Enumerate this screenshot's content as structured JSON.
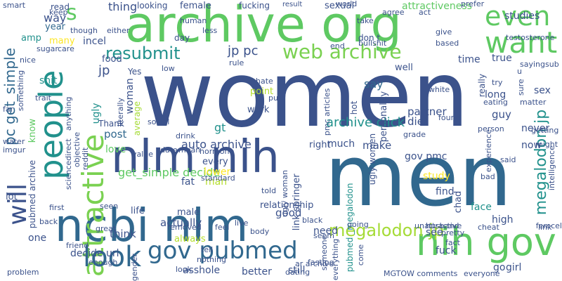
{
  "words": [
    {
      "text": "women",
      "color": "#3b528b"
    },
    {
      "text": "men",
      "color": "#31688e"
    },
    {
      "text": "archive org",
      "color": "#5ec962"
    },
    {
      "text": "nlm nih",
      "color": "#3b528b"
    },
    {
      "text": "ncbi nlm",
      "color": "#31688e"
    },
    {
      "text": "nih gov",
      "color": "#5ec962"
    },
    {
      "text": "people",
      "color": "#21918c"
    },
    {
      "text": "attractive",
      "color": "#7ad151"
    },
    {
      "text": "look",
      "color": "#31688e"
    },
    {
      "text": "will",
      "color": "#3b528b"
    },
    {
      "text": "want",
      "color": "#5ec962"
    },
    {
      "text": "even",
      "color": "#5ec962"
    },
    {
      "text": "gov pubmed",
      "color": "#31688e"
    },
    {
      "text": "web archive",
      "color": "#7ad151"
    },
    {
      "text": "resubmit",
      "color": "#21918c"
    },
    {
      "text": "megalodon jp",
      "color": "#a5db36"
    },
    {
      "text": "megalodon jp",
      "color": "#21918c"
    },
    {
      "text": "jp pc",
      "color": "#3b528b"
    },
    {
      "text": "pc get_simple",
      "color": "#31688e"
    },
    {
      "text": "s",
      "color": "#5ec962"
    },
    {
      "text": "archive click",
      "color": "#21918c"
    },
    {
      "text": "auto archive",
      "color": "#3b528b"
    },
    {
      "text": "get_simple decide",
      "color": "#5ec962"
    },
    {
      "text": "attractiveness",
      "color": "#5ec962"
    },
    {
      "text": "studies",
      "color": "#3b528b"
    },
    {
      "text": "thing",
      "color": "#3b528b"
    },
    {
      "text": "say",
      "color": "#31688e"
    },
    {
      "text": "incel",
      "color": "#3b528b"
    },
    {
      "text": "way",
      "color": "#3b528b"
    },
    {
      "text": "year",
      "color": "#31688e"
    },
    {
      "text": "amp",
      "color": "#21918c"
    },
    {
      "text": "many",
      "color": "#fde725"
    },
    {
      "text": "jp",
      "color": "#3b528b"
    },
    {
      "text": "food",
      "color": "#3b528b"
    },
    {
      "text": "shit",
      "color": "#21918c"
    },
    {
      "text": "ugly",
      "color": "#21918c"
    },
    {
      "text": "woman",
      "color": "#3b528b"
    },
    {
      "text": "Thank",
      "color": "#3b528b"
    },
    {
      "text": "post",
      "color": "#31688e"
    },
    {
      "text": "gt",
      "color": "#21918c"
    },
    {
      "text": "love",
      "color": "#5ec962"
    },
    {
      "text": "average",
      "color": "#a5db36"
    },
    {
      "text": "know",
      "color": "#5ec962"
    },
    {
      "text": "point",
      "color": "#b5de2b"
    },
    {
      "text": "work",
      "color": "#3b528b"
    },
    {
      "text": "link springer",
      "color": "#3b528b"
    },
    {
      "text": "much",
      "color": "#3b528b"
    },
    {
      "text": "make",
      "color": "#3b528b"
    },
    {
      "text": "right",
      "color": "#3b528b"
    },
    {
      "text": "every",
      "color": "#3b528b"
    },
    {
      "text": "lower",
      "color": "#fde725"
    },
    {
      "text": "fat",
      "color": "#3b528b"
    },
    {
      "text": "man",
      "color": "#b5de2b"
    },
    {
      "text": "life",
      "color": "#3b528b"
    },
    {
      "text": "relationship",
      "color": "#3b528b"
    },
    {
      "text": "actually",
      "color": "#3b528b"
    },
    {
      "text": "male",
      "color": "#3b528b"
    },
    {
      "text": "always",
      "color": "#b5de2b"
    },
    {
      "text": "asshole",
      "color": "#3b528b"
    },
    {
      "text": "think",
      "color": "#3b528b"
    },
    {
      "text": "decide url",
      "color": "#3b528b"
    },
    {
      "text": "one",
      "color": "#3b528b"
    },
    {
      "text": "lot",
      "color": "#3b528b"
    },
    {
      "text": "pubmed archive",
      "color": "#3b528b"
    },
    {
      "text": "good",
      "color": "#3b528b"
    },
    {
      "text": "need",
      "color": "#3b528b"
    },
    {
      "text": "better",
      "color": "#3b528b"
    },
    {
      "text": "still",
      "color": "#3b528b"
    },
    {
      "text": "ugly women",
      "color": "#3b528b"
    },
    {
      "text": "pubmed _megalodon",
      "color": "#21918c"
    },
    {
      "text": "study",
      "color": "#fde725"
    },
    {
      "text": "find",
      "color": "#3b528b"
    },
    {
      "text": "face",
      "color": "#21918c"
    },
    {
      "text": "high",
      "color": "#3b528b"
    },
    {
      "text": "see",
      "color": "#3b528b"
    },
    {
      "text": "fuck",
      "color": "#3b528b"
    },
    {
      "text": "go",
      "color": "#3b528b"
    },
    {
      "text": "girl",
      "color": "#3b528b"
    },
    {
      "text": "chad",
      "color": "#3b528b"
    },
    {
      "text": "guy",
      "color": "#3b528b"
    },
    {
      "text": "long",
      "color": "#3b528b"
    },
    {
      "text": "sex",
      "color": "#3b528b"
    },
    {
      "text": "now",
      "color": "#3b528b"
    },
    {
      "text": "never",
      "color": "#3b528b"
    },
    {
      "text": "true",
      "color": "#3b528b"
    },
    {
      "text": "time",
      "color": "#3b528b"
    },
    {
      "text": "partner",
      "color": "#3b528b"
    },
    {
      "text": "diet",
      "color": "#3b528b"
    },
    {
      "text": "gov pmc",
      "color": "#3b528b"
    },
    {
      "text": "personality",
      "color": "#3b528b"
    },
    {
      "text": "really",
      "color": "#3b528b"
    },
    {
      "text": "well",
      "color": "#3b528b"
    },
    {
      "text": "hot",
      "color": "#3b528b"
    },
    {
      "text": "reddit",
      "color": "#3b528b"
    },
    {
      "text": "read",
      "color": "#3b528b"
    },
    {
      "text": "something",
      "color": "#3b528b"
    },
    {
      "text": "keep",
      "color": "#3b528b"
    },
    {
      "text": "smart",
      "color": "#3b528b"
    },
    {
      "text": "nice",
      "color": "#3b528b"
    },
    {
      "text": "sugar",
      "color": "#3b528b"
    },
    {
      "text": "care",
      "color": "#3b528b"
    },
    {
      "text": "though",
      "color": "#3b528b"
    },
    {
      "text": "either",
      "color": "#3b528b"
    },
    {
      "text": "agree",
      "color": "#3b528b"
    },
    {
      "text": "looking",
      "color": "#3b528b"
    },
    {
      "text": "female",
      "color": "#3b528b"
    },
    {
      "text": "human",
      "color": "#3b528b"
    },
    {
      "text": "less",
      "color": "#3b528b"
    },
    {
      "text": "day",
      "color": "#3b528b"
    },
    {
      "text": "fucking",
      "color": "#3b528b"
    },
    {
      "text": "result",
      "color": "#3b528b"
    },
    {
      "text": "sexual",
      "color": "#3b528b"
    },
    {
      "text": "world",
      "color": "#3b528b"
    },
    {
      "text": "take",
      "color": "#3b528b"
    },
    {
      "text": "don t",
      "color": "#3b528b"
    },
    {
      "text": "bullshit",
      "color": "#3b528b"
    },
    {
      "text": "end",
      "color": "#3b528b"
    },
    {
      "text": "act",
      "color": "#3b528b"
    },
    {
      "text": "prefer",
      "color": "#3b528b"
    },
    {
      "text": "give",
      "color": "#3b528b"
    },
    {
      "text": "testosterone",
      "color": "#3b528b"
    },
    {
      "text": "based",
      "color": "#3b528b"
    },
    {
      "text": "sure",
      "color": "#3b528b"
    },
    {
      "text": "u",
      "color": "#3b528b"
    },
    {
      "text": "saying",
      "color": "#3b528b"
    },
    {
      "text": "sub",
      "color": "#3b528b"
    },
    {
      "text": "Yes",
      "color": "#3b528b"
    },
    {
      "text": "low",
      "color": "#3b528b"
    },
    {
      "text": "rule",
      "color": "#3b528b"
    },
    {
      "text": "hate",
      "color": "#3b528b"
    },
    {
      "text": "put",
      "color": "#3b528b"
    },
    {
      "text": "white",
      "color": "#3b528b"
    },
    {
      "text": "try",
      "color": "#3b528b"
    },
    {
      "text": "eating",
      "color": "#3b528b"
    },
    {
      "text": "matter",
      "color": "#3b528b"
    },
    {
      "text": "trait",
      "color": "#3b528b"
    },
    {
      "text": "literally",
      "color": "#3b528b"
    },
    {
      "text": "anything",
      "color": "#3b528b"
    },
    {
      "text": "far",
      "color": "#3b528b"
    },
    {
      "text": "pmc articles",
      "color": "#3b528b"
    },
    {
      "text": "grade",
      "color": "#3b528b"
    },
    {
      "text": "found",
      "color": "#3b528b"
    },
    {
      "text": "person",
      "color": "#3b528b"
    },
    {
      "text": "getting",
      "color": "#3b528b"
    },
    {
      "text": "social",
      "color": "#3b528b"
    },
    {
      "text": "drink",
      "color": "#3b528b"
    },
    {
      "text": "date",
      "color": "#3b528b"
    },
    {
      "text": "mean",
      "color": "#3b528b"
    },
    {
      "text": "hormone",
      "color": "#3b528b"
    },
    {
      "text": "value",
      "color": "#3b528b"
    },
    {
      "text": "water",
      "color": "#3b528b"
    },
    {
      "text": "imgur",
      "color": "#3b528b"
    },
    {
      "text": "sciencedirect",
      "color": "#3b528b"
    },
    {
      "text": "objective",
      "color": "#3b528b"
    },
    {
      "text": "standard",
      "color": "#3b528b"
    },
    {
      "text": "told",
      "color": "#3b528b"
    },
    {
      "text": "ugly woman",
      "color": "#3b528b"
    },
    {
      "text": "might",
      "color": "#3b528b"
    },
    {
      "text": "said",
      "color": "#3b528b"
    },
    {
      "text": "bad",
      "color": "#3b528b"
    },
    {
      "text": "experience",
      "color": "#3b528b"
    },
    {
      "text": "intelligence",
      "color": "#3b528b"
    },
    {
      "text": "pretty",
      "color": "#3b528b"
    },
    {
      "text": "femcel",
      "color": "#3b528b"
    },
    {
      "text": "cheat",
      "color": "#3b528b"
    },
    {
      "text": "link",
      "color": "#3b528b"
    },
    {
      "text": "husband",
      "color": "#3b528b"
    },
    {
      "text": "seem",
      "color": "#3b528b"
    },
    {
      "text": "body",
      "color": "#3b528b"
    },
    {
      "text": "first",
      "color": "#3b528b"
    },
    {
      "text": "seen",
      "color": "#3b528b"
    },
    {
      "text": "removed",
      "color": "#3b528b"
    },
    {
      "text": "feel",
      "color": "#3b528b"
    },
    {
      "text": "black",
      "color": "#3b528b"
    },
    {
      "text": "live",
      "color": "#3b528b"
    },
    {
      "text": "someone",
      "color": "#3b528b"
    },
    {
      "text": "everything",
      "color": "#3b528b"
    },
    {
      "text": "going",
      "color": "#3b528b"
    },
    {
      "text": "unattractive",
      "color": "#3b528b"
    },
    {
      "text": "fact",
      "color": "#3b528b"
    },
    {
      "text": "back",
      "color": "#3b528b"
    },
    {
      "text": "great",
      "color": "#3b528b"
    },
    {
      "text": "friend",
      "color": "#3b528b"
    },
    {
      "text": "enough",
      "color": "#3b528b"
    },
    {
      "text": "gender",
      "color": "#3b528b"
    },
    {
      "text": "tell",
      "color": "#3b528b"
    },
    {
      "text": "nothing",
      "color": "#3b528b"
    },
    {
      "text": "fasting",
      "color": "#3b528b"
    },
    {
      "text": "problem",
      "color": "#3b528b"
    },
    {
      "text": "come",
      "color": "#3b528b"
    },
    {
      "text": "ar archive",
      "color": "#3b528b"
    },
    {
      "text": "MGTOW comments",
      "color": "#3b528b"
    },
    {
      "text": "everyone",
      "color": "#3b528b"
    },
    {
      "text": "dating",
      "color": "#3b528b"
    },
    {
      "text": "look",
      "color": "#3b528b"
    }
  ]
}
